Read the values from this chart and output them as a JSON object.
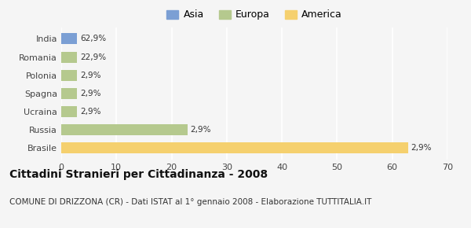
{
  "categories": [
    "India",
    "Romania",
    "Polonia",
    "Spagna",
    "Ucraina",
    "Russia",
    "Brasile"
  ],
  "values": [
    62.9,
    22.9,
    2.9,
    2.9,
    2.9,
    2.9,
    2.9
  ],
  "colors": [
    "#7b9fd4",
    "#b5c98e",
    "#b5c98e",
    "#b5c98e",
    "#b5c98e",
    "#b5c98e",
    "#f5d06e"
  ],
  "labels": [
    "62,9%",
    "22,9%",
    "2,9%",
    "2,9%",
    "2,9%",
    "2,9%",
    "2,9%"
  ],
  "legend_labels": [
    "Asia",
    "Europa",
    "America"
  ],
  "legend_colors": [
    "#7b9fd4",
    "#b5c98e",
    "#f5d06e"
  ],
  "title": "Cittadini Stranieri per Cittadinanza - 2008",
  "subtitle": "COMUNE DI DRIZZONA (CR) - Dati ISTAT al 1° gennaio 2008 - Elaborazione TUTTITALIA.IT",
  "xlim": [
    0,
    70
  ],
  "xticks": [
    0,
    10,
    20,
    30,
    40,
    50,
    60,
    70
  ],
  "background_color": "#f5f5f5",
  "grid_color": "#ffffff",
  "title_fontsize": 10,
  "subtitle_fontsize": 7.5,
  "bar_label_fontsize": 7.5,
  "tick_fontsize": 8,
  "legend_fontsize": 9
}
